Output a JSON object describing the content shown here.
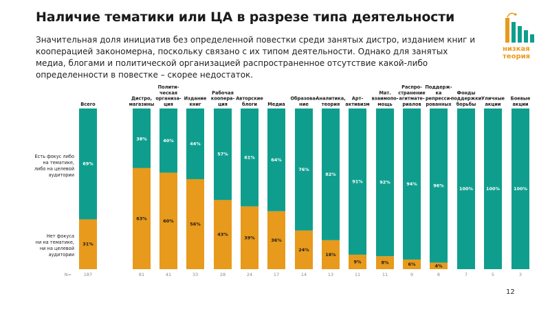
{
  "header": {
    "title": "Наличие тематики или ЦА в разрезе типа деятельности",
    "subtitle": "Значительная доля инициатив без определенной повестки среди занятых дистро, изданием книг и кооперацией закономерна, поскольку связано с их типом деятельности. Однако для занятых медиа, блогами и политической организацией распространенное отсутствие какой-либо определенности в повестке – скорее недостаток."
  },
  "logo": {
    "line1": "низкая",
    "line2": "теория",
    "color": "#e89a1c",
    "bar_color": "#0f9e8e"
  },
  "page": {
    "number": "12"
  },
  "colors": {
    "teal": "#0f9e8e",
    "orange": "#e89a1c"
  },
  "chart_data": {
    "type": "bar",
    "stacked": true,
    "normalized_to_100": true,
    "categories": [
      [
        "Всего"
      ],
      [
        "Дистро,",
        "магазины"
      ],
      [
        "Полити-",
        "ческая",
        "организа-",
        "ция"
      ],
      [
        "Издание",
        "книг"
      ],
      [
        "Рабочая",
        "коопера-",
        "ция"
      ],
      [
        "Авторские",
        "блоги"
      ],
      [
        "Медиа"
      ],
      [
        "Образова-",
        "ние"
      ],
      [
        "Аналитика,",
        "теория"
      ],
      [
        "Арт-",
        "активизм"
      ],
      [
        "Мат.",
        "взаимопо-",
        "мощь"
      ],
      [
        "Распро-",
        "странение",
        "агитмате-",
        "риалов"
      ],
      [
        "Поддерж-",
        "ка",
        "репресси-",
        "рованных"
      ],
      [
        "Фонды",
        "поддержки",
        "борьбы"
      ],
      [
        "Уличные",
        "акции"
      ],
      [
        "Боевые",
        "акции"
      ]
    ],
    "series": [
      {
        "name": "Нет фокуса ни на тематике, ни на целевой аудитории",
        "label_lines": [
          "Нет фокуса",
          "ни на тематике,",
          "ни на целевой",
          "аудитории"
        ],
        "color": "#e89a1c",
        "values": [
          31,
          63,
          60,
          56,
          43,
          39,
          36,
          24,
          18,
          9,
          8,
          6,
          4,
          0,
          0,
          0
        ],
        "labels": [
          "31%",
          "63%",
          "60%",
          "56%",
          "43%",
          "39%",
          "36%",
          "24%",
          "18%",
          "9%",
          "8%",
          "6%",
          "4%",
          "",
          "",
          ""
        ]
      },
      {
        "name": "Есть фокус либо на тематике, либо на целевой аудитории",
        "label_lines": [
          "Есть фокус либо",
          "на тематике,",
          "либо на целевой",
          "аудитории"
        ],
        "color": "#0f9e8e",
        "values": [
          69,
          38,
          40,
          44,
          57,
          61,
          64,
          76,
          82,
          91,
          92,
          94,
          96,
          100,
          100,
          100
        ],
        "labels": [
          "69%",
          "38%",
          "40%",
          "44%",
          "57%",
          "61%",
          "64%",
          "76%",
          "82%",
          "91%",
          "92%",
          "94%",
          "96%",
          "100%",
          "100%",
          "100%"
        ]
      }
    ],
    "n_label": "N=",
    "n_values": [
      "187",
      "81",
      "41",
      "33",
      "28",
      "24",
      "17",
      "14",
      "13",
      "11",
      "11",
      "9",
      "8",
      "7",
      "5",
      "3"
    ],
    "ylim": [
      0,
      100
    ]
  }
}
